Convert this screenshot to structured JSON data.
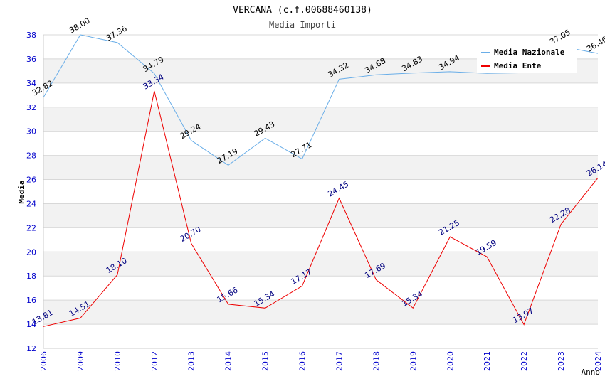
{
  "chart_data": {
    "type": "line",
    "title": "VERCANA (c.f.00688460138)",
    "subtitle": "Media Importi",
    "xlabel": "Anno",
    "ylabel": "Media",
    "ylim": [
      12,
      38
    ],
    "ytick_step": 2,
    "grid": true,
    "legend_position": "top-right",
    "categories": [
      "2006",
      "2009",
      "2010",
      "2012",
      "2013",
      "2014",
      "2015",
      "2016",
      "2017",
      "2018",
      "2019",
      "2020",
      "2021",
      "2022",
      "2023",
      "2024"
    ],
    "series": [
      {
        "name": "Media Nazionale",
        "color": "#6aaee8",
        "label_color": "#000000",
        "values": [
          32.82,
          38.0,
          37.36,
          34.79,
          29.24,
          27.19,
          29.43,
          27.71,
          34.32,
          34.68,
          34.83,
          34.94,
          34.8,
          34.85,
          37.05,
          36.46
        ],
        "labels": [
          "32.82",
          "38.00",
          "37.36",
          "34.79",
          "29.24",
          "27.19",
          "29.43",
          "27.71",
          "34.32",
          "34.68",
          "34.83",
          "34.94",
          "",
          "",
          "37.05",
          "36.46"
        ]
      },
      {
        "name": "Media Ente",
        "color": "#ee0000",
        "label_color": "#000080",
        "values": [
          13.81,
          14.51,
          18.1,
          33.34,
          20.7,
          15.66,
          15.34,
          17.17,
          24.45,
          17.69,
          15.34,
          21.25,
          19.59,
          13.97,
          22.28,
          26.14
        ],
        "labels": [
          "13.81",
          "14.51",
          "18.10",
          "33.34",
          "20.70",
          "15.66",
          "15.34",
          "17.17",
          "24.45",
          "17.69",
          "15.34",
          "21.25",
          "19.59",
          "13.97",
          "22.28",
          "26.14"
        ]
      }
    ]
  }
}
